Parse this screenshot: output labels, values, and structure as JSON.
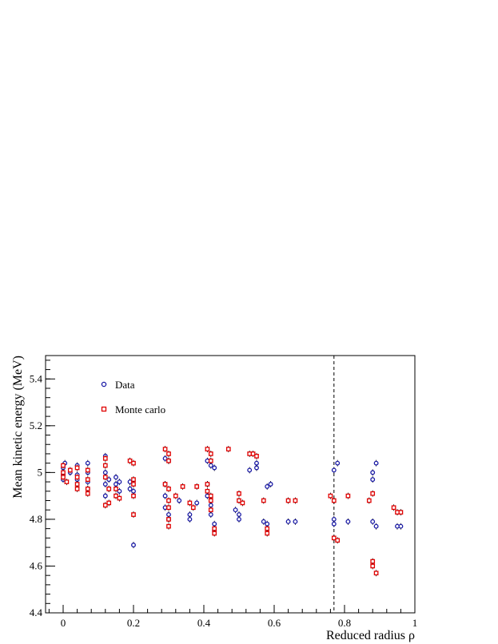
{
  "chart_data": {
    "type": "scatter",
    "xlabel": "Reduced radius ρ",
    "ylabel": "Mean kinetic energy (MeV)",
    "xlim": [
      -0.05,
      1.0
    ],
    "ylim": [
      4.4,
      5.5
    ],
    "xticks": [
      0,
      0.2,
      0.4,
      0.6,
      0.8,
      1
    ],
    "xtick_labels": [
      "0",
      "0.2",
      "0.4",
      "0.6",
      "0.8",
      "1"
    ],
    "yticks": [
      4.4,
      4.6,
      4.8,
      5.0,
      5.2,
      5.4
    ],
    "ytick_labels": [
      "4.4",
      "4.6",
      "4.8",
      "5",
      "5.2",
      "5.4"
    ],
    "grid": false,
    "legend_position": "top-left",
    "vertical_line": {
      "x": 0.77,
      "style": "dashed"
    },
    "series": [
      {
        "name": "Data",
        "color": "#1a1aa6",
        "marker": "open-circle",
        "points": [
          [
            0.0,
            5.02
          ],
          [
            0.0,
            4.99
          ],
          [
            0.0,
            4.97
          ],
          [
            0.005,
            5.04
          ],
          [
            0.02,
            5.0
          ],
          [
            0.04,
            5.03
          ],
          [
            0.04,
            4.99
          ],
          [
            0.04,
            4.97
          ],
          [
            0.07,
            5.04
          ],
          [
            0.07,
            5.0
          ],
          [
            0.07,
            4.96
          ],
          [
            0.07,
            4.93
          ],
          [
            0.12,
            5.07
          ],
          [
            0.12,
            5.0
          ],
          [
            0.12,
            4.95
          ],
          [
            0.12,
            4.9
          ],
          [
            0.13,
            4.93
          ],
          [
            0.13,
            4.97
          ],
          [
            0.15,
            4.98
          ],
          [
            0.15,
            4.95
          ],
          [
            0.16,
            4.92
          ],
          [
            0.16,
            4.96
          ],
          [
            0.19,
            4.93
          ],
          [
            0.19,
            4.96
          ],
          [
            0.2,
            4.92
          ],
          [
            0.2,
            4.69
          ],
          [
            0.29,
            5.06
          ],
          [
            0.3,
            5.05
          ],
          [
            0.29,
            4.95
          ],
          [
            0.29,
            4.9
          ],
          [
            0.29,
            4.85
          ],
          [
            0.3,
            4.82
          ],
          [
            0.3,
            4.8
          ],
          [
            0.33,
            4.88
          ],
          [
            0.36,
            4.82
          ],
          [
            0.36,
            4.8
          ],
          [
            0.38,
            4.87
          ],
          [
            0.41,
            5.05
          ],
          [
            0.42,
            5.03
          ],
          [
            0.41,
            4.95
          ],
          [
            0.41,
            4.9
          ],
          [
            0.42,
            4.86
          ],
          [
            0.42,
            4.82
          ],
          [
            0.43,
            4.78
          ],
          [
            0.43,
            4.75
          ],
          [
            0.43,
            5.02
          ],
          [
            0.49,
            4.84
          ],
          [
            0.5,
            4.82
          ],
          [
            0.5,
            4.8
          ],
          [
            0.53,
            5.01
          ],
          [
            0.55,
            5.02
          ],
          [
            0.55,
            5.04
          ],
          [
            0.57,
            4.79
          ],
          [
            0.58,
            4.78
          ],
          [
            0.58,
            4.94
          ],
          [
            0.59,
            4.95
          ],
          [
            0.64,
            4.79
          ],
          [
            0.66,
            4.79
          ],
          [
            0.77,
            5.01
          ],
          [
            0.78,
            5.04
          ],
          [
            0.77,
            4.8
          ],
          [
            0.77,
            4.78
          ],
          [
            0.81,
            4.79
          ],
          [
            0.88,
            5.0
          ],
          [
            0.88,
            4.97
          ],
          [
            0.89,
            5.04
          ],
          [
            0.88,
            4.79
          ],
          [
            0.89,
            4.77
          ],
          [
            0.95,
            4.77
          ],
          [
            0.96,
            4.77
          ]
        ]
      },
      {
        "name": "Monte carlo",
        "color": "#e00000",
        "marker": "open-square",
        "points": [
          [
            0.0,
            5.03
          ],
          [
            0.0,
            5.0
          ],
          [
            0.0,
            4.98
          ],
          [
            0.01,
            4.96
          ],
          [
            0.02,
            5.01
          ],
          [
            0.04,
            5.02
          ],
          [
            0.04,
            4.98
          ],
          [
            0.04,
            4.95
          ],
          [
            0.04,
            4.93
          ],
          [
            0.07,
            5.01
          ],
          [
            0.07,
            4.97
          ],
          [
            0.07,
            4.93
          ],
          [
            0.07,
            4.91
          ],
          [
            0.12,
            5.06
          ],
          [
            0.12,
            5.03
          ],
          [
            0.12,
            4.98
          ],
          [
            0.13,
            4.93
          ],
          [
            0.13,
            4.87
          ],
          [
            0.12,
            4.86
          ],
          [
            0.15,
            4.93
          ],
          [
            0.15,
            4.9
          ],
          [
            0.16,
            4.89
          ],
          [
            0.19,
            5.05
          ],
          [
            0.2,
            5.04
          ],
          [
            0.2,
            4.97
          ],
          [
            0.2,
            4.95
          ],
          [
            0.2,
            4.9
          ],
          [
            0.2,
            4.82
          ],
          [
            0.29,
            5.1
          ],
          [
            0.3,
            5.08
          ],
          [
            0.3,
            5.05
          ],
          [
            0.29,
            4.95
          ],
          [
            0.3,
            4.93
          ],
          [
            0.3,
            4.88
          ],
          [
            0.3,
            4.85
          ],
          [
            0.3,
            4.8
          ],
          [
            0.3,
            4.77
          ],
          [
            0.32,
            4.9
          ],
          [
            0.34,
            4.94
          ],
          [
            0.36,
            4.87
          ],
          [
            0.37,
            4.85
          ],
          [
            0.38,
            4.94
          ],
          [
            0.41,
            5.1
          ],
          [
            0.42,
            5.08
          ],
          [
            0.42,
            5.05
          ],
          [
            0.41,
            4.95
          ],
          [
            0.41,
            4.92
          ],
          [
            0.42,
            4.9
          ],
          [
            0.42,
            4.88
          ],
          [
            0.42,
            4.84
          ],
          [
            0.43,
            4.76
          ],
          [
            0.43,
            4.74
          ],
          [
            0.47,
            5.1
          ],
          [
            0.5,
            4.91
          ],
          [
            0.5,
            4.88
          ],
          [
            0.51,
            4.87
          ],
          [
            0.53,
            5.08
          ],
          [
            0.54,
            5.08
          ],
          [
            0.55,
            5.07
          ],
          [
            0.57,
            4.88
          ],
          [
            0.58,
            4.76
          ],
          [
            0.58,
            4.74
          ],
          [
            0.64,
            4.88
          ],
          [
            0.66,
            4.88
          ],
          [
            0.76,
            4.9
          ],
          [
            0.77,
            4.88
          ],
          [
            0.77,
            4.72
          ],
          [
            0.78,
            4.71
          ],
          [
            0.81,
            4.9
          ],
          [
            0.87,
            4.88
          ],
          [
            0.88,
            4.91
          ],
          [
            0.88,
            4.62
          ],
          [
            0.88,
            4.6
          ],
          [
            0.89,
            4.57
          ],
          [
            0.94,
            4.85
          ],
          [
            0.95,
            4.83
          ],
          [
            0.96,
            4.83
          ]
        ]
      }
    ]
  }
}
